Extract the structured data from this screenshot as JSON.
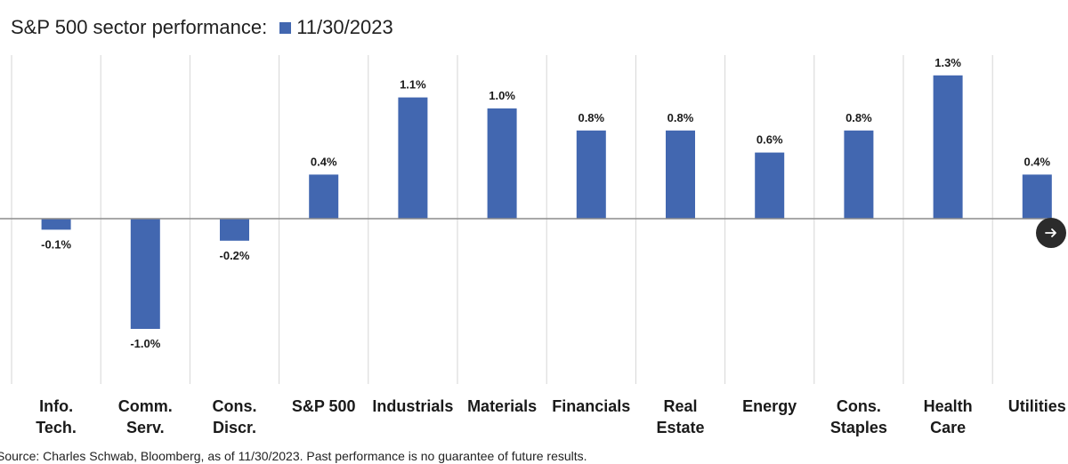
{
  "header": {
    "title": "S&P 500 sector performance:"
  },
  "colors": {
    "bar": "#4267b0",
    "gridline": "#d6d6d6",
    "axis": "#8c8c8c",
    "next_button": "#2b2b2b"
  },
  "chart_data": {
    "type": "bar",
    "title": "S&P 500 sector performance:",
    "xlabel": "",
    "ylabel": "",
    "ylim": [
      -1.3,
      1.5
    ],
    "grid": "vertical separators between categories",
    "legend_position": "top",
    "series": [
      {
        "name": "11/30/2023",
        "values": [
          -0.1,
          -1.0,
          -0.2,
          0.4,
          1.1,
          1.0,
          0.8,
          0.8,
          0.6,
          0.8,
          1.3,
          0.4
        ],
        "labels": [
          "-0.1%",
          "-1.0%",
          "-0.2%",
          "0.4%",
          "1.1%",
          "1.0%",
          "0.8%",
          "0.8%",
          "0.6%",
          "0.8%",
          "1.3%",
          "0.4%"
        ]
      }
    ],
    "categories": [
      [
        "Info.",
        "Tech."
      ],
      [
        "Comm.",
        "Serv."
      ],
      [
        "Cons.",
        "Discr."
      ],
      [
        "S&P 500"
      ],
      [
        "Industrials"
      ],
      [
        "Materials"
      ],
      [
        "Financials"
      ],
      [
        "Real",
        "Estate"
      ],
      [
        "Energy"
      ],
      [
        "Cons.",
        "Staples"
      ],
      [
        "Health",
        "Care"
      ],
      [
        "Utilities"
      ]
    ]
  },
  "footer": {
    "source": "Source: Charles Schwab, Bloomberg, as of 11/30/2023. Past performance is no guarantee of future results."
  },
  "controls": {
    "next_icon": "arrow-right-icon"
  }
}
